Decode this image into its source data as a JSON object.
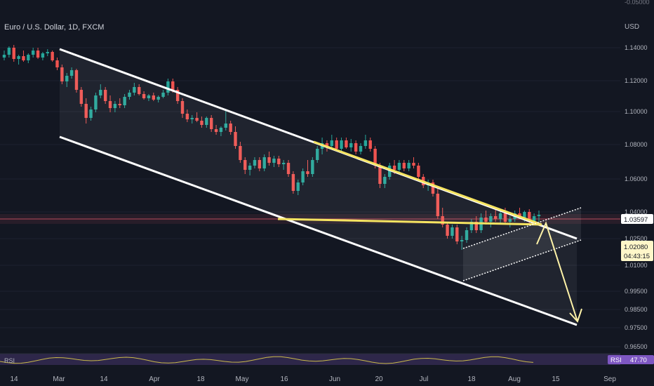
{
  "header": {
    "symbol": "Euro / U.S. Dollar, 1D, FXCM",
    "currency": "USD",
    "top_partial_tick": "-0.05000"
  },
  "colors": {
    "up": "#26a69a",
    "down": "#ef5350",
    "channel": "#ffffff",
    "wedge": "#f5e461",
    "arrow": "#fff3a8",
    "rsi_band": "#7e57c2",
    "rsi_line": "#c9b84a",
    "support": "#b84a5c"
  },
  "price_badges": {
    "level": "1.03597",
    "last": "1.02080",
    "countdown": "04:43:15"
  },
  "rsi": {
    "label": "RSI",
    "value": "47.70"
  },
  "chart_data": {
    "type": "candlestick",
    "y_ticks": [
      "1.14000",
      "1.12000",
      "1.10000",
      "1.08000",
      "1.06000",
      "1.04000",
      "1.02500",
      "1.01000",
      "0.99500",
      "0.98500",
      "0.97500",
      "0.96500"
    ],
    "x_ticks": [
      "14",
      "Mar",
      "14",
      "Apr",
      "18",
      "May",
      "16",
      "Jun",
      "20",
      "Jul",
      "18",
      "Aug",
      "15",
      "Sep"
    ],
    "candles": [
      [
        1.133,
        1.138,
        1.131,
        1.135
      ],
      [
        1.135,
        1.141,
        1.133,
        1.14
      ],
      [
        1.14,
        1.142,
        1.13,
        1.132
      ],
      [
        1.132,
        1.135,
        1.128,
        1.134
      ],
      [
        1.134,
        1.138,
        1.13,
        1.131
      ],
      [
        1.131,
        1.136,
        1.129,
        1.135
      ],
      [
        1.135,
        1.14,
        1.133,
        1.138
      ],
      [
        1.138,
        1.14,
        1.132,
        1.133
      ],
      [
        1.133,
        1.137,
        1.131,
        1.136
      ],
      [
        1.136,
        1.139,
        1.134,
        1.137
      ],
      [
        1.137,
        1.138,
        1.13,
        1.131
      ],
      [
        1.131,
        1.133,
        1.124,
        1.126
      ],
      [
        1.126,
        1.128,
        1.114,
        1.116
      ],
      [
        1.116,
        1.122,
        1.112,
        1.12
      ],
      [
        1.12,
        1.126,
        1.118,
        1.124
      ],
      [
        1.124,
        1.125,
        1.108,
        1.11
      ],
      [
        1.11,
        1.112,
        1.098,
        1.1
      ],
      [
        1.1,
        1.104,
        1.086,
        1.09
      ],
      [
        1.09,
        1.098,
        1.088,
        1.096
      ],
      [
        1.096,
        1.108,
        1.094,
        1.106
      ],
      [
        1.106,
        1.114,
        1.104,
        1.11
      ],
      [
        1.11,
        1.112,
        1.1,
        1.102
      ],
      [
        1.102,
        1.106,
        1.094,
        1.097
      ],
      [
        1.097,
        1.102,
        1.094,
        1.1
      ],
      [
        1.1,
        1.104,
        1.097,
        1.099
      ],
      [
        1.099,
        1.107,
        1.097,
        1.105
      ],
      [
        1.105,
        1.11,
        1.103,
        1.108
      ],
      [
        1.108,
        1.115,
        1.106,
        1.112
      ],
      [
        1.112,
        1.114,
        1.106,
        1.107
      ],
      [
        1.107,
        1.109,
        1.103,
        1.104
      ],
      [
        1.104,
        1.107,
        1.102,
        1.106
      ],
      [
        1.106,
        1.108,
        1.102,
        1.103
      ],
      [
        1.103,
        1.106,
        1.101,
        1.105
      ],
      [
        1.105,
        1.11,
        1.104,
        1.108
      ],
      [
        1.108,
        1.118,
        1.106,
        1.116
      ],
      [
        1.116,
        1.118,
        1.108,
        1.11
      ],
      [
        1.11,
        1.112,
        1.1,
        1.102
      ],
      [
        1.102,
        1.104,
        1.09,
        1.093
      ],
      [
        1.093,
        1.096,
        1.087,
        1.089
      ],
      [
        1.089,
        1.092,
        1.086,
        1.09
      ],
      [
        1.09,
        1.094,
        1.087,
        1.088
      ],
      [
        1.088,
        1.091,
        1.083,
        1.085
      ],
      [
        1.085,
        1.091,
        1.083,
        1.09
      ],
      [
        1.09,
        1.092,
        1.08,
        1.082
      ],
      [
        1.082,
        1.085,
        1.078,
        1.08
      ],
      [
        1.08,
        1.084,
        1.077,
        1.083
      ],
      [
        1.083,
        1.095,
        1.081,
        1.086
      ],
      [
        1.086,
        1.088,
        1.078,
        1.08
      ],
      [
        1.08,
        1.084,
        1.068,
        1.07
      ],
      [
        1.07,
        1.073,
        1.058,
        1.06
      ],
      [
        1.06,
        1.062,
        1.05,
        1.053
      ],
      [
        1.053,
        1.058,
        1.049,
        1.056
      ],
      [
        1.056,
        1.062,
        1.054,
        1.06
      ],
      [
        1.06,
        1.062,
        1.052,
        1.054
      ],
      [
        1.054,
        1.064,
        1.052,
        1.062
      ],
      [
        1.062,
        1.066,
        1.056,
        1.058
      ],
      [
        1.058,
        1.063,
        1.055,
        1.061
      ],
      [
        1.061,
        1.063,
        1.055,
        1.057
      ],
      [
        1.057,
        1.06,
        1.053,
        1.058
      ],
      [
        1.058,
        1.06,
        1.048,
        1.05
      ],
      [
        1.05,
        1.052,
        1.036,
        1.038
      ],
      [
        1.038,
        1.046,
        1.035,
        1.044
      ],
      [
        1.044,
        1.054,
        1.042,
        1.052
      ],
      [
        1.052,
        1.06,
        1.048,
        1.05
      ],
      [
        1.05,
        1.062,
        1.048,
        1.06
      ],
      [
        1.06,
        1.07,
        1.058,
        1.068
      ],
      [
        1.068,
        1.076,
        1.064,
        1.072
      ],
      [
        1.072,
        1.074,
        1.066,
        1.07
      ],
      [
        1.07,
        1.078,
        1.068,
        1.074
      ],
      [
        1.074,
        1.076,
        1.066,
        1.068
      ],
      [
        1.068,
        1.076,
        1.066,
        1.074
      ],
      [
        1.074,
        1.076,
        1.068,
        1.069
      ],
      [
        1.069,
        1.075,
        1.066,
        1.072
      ],
      [
        1.072,
        1.074,
        1.064,
        1.066
      ],
      [
        1.066,
        1.072,
        1.064,
        1.07
      ],
      [
        1.07,
        1.078,
        1.068,
        1.074
      ],
      [
        1.074,
        1.076,
        1.066,
        1.068
      ],
      [
        1.068,
        1.07,
        1.054,
        1.056
      ],
      [
        1.056,
        1.058,
        1.04,
        1.043
      ],
      [
        1.043,
        1.05,
        1.04,
        1.048
      ],
      [
        1.048,
        1.058,
        1.046,
        1.056
      ],
      [
        1.056,
        1.06,
        1.05,
        1.053
      ],
      [
        1.053,
        1.06,
        1.051,
        1.058
      ],
      [
        1.058,
        1.06,
        1.052,
        1.054
      ],
      [
        1.054,
        1.06,
        1.052,
        1.058
      ],
      [
        1.058,
        1.062,
        1.054,
        1.056
      ],
      [
        1.056,
        1.058,
        1.046,
        1.048
      ],
      [
        1.048,
        1.05,
        1.04,
        1.042
      ],
      [
        1.042,
        1.046,
        1.038,
        1.044
      ],
      [
        1.044,
        1.046,
        1.034,
        1.036
      ],
      [
        1.036,
        1.04,
        1.018,
        1.02
      ],
      [
        1.02,
        1.026,
        1.012,
        1.014
      ],
      [
        1.014,
        1.016,
        1.004,
        1.006
      ],
      [
        1.006,
        1.014,
        1.004,
        1.012
      ],
      [
        1.012,
        1.014,
        1.0,
        1.002
      ],
      [
        1.002,
        1.006,
        0.996,
        1.003
      ],
      [
        1.003,
        1.012,
        1.001,
        1.01
      ],
      [
        1.01,
        1.018,
        1.008,
        1.016
      ],
      [
        1.016,
        1.02,
        1.008,
        1.01
      ],
      [
        1.01,
        1.022,
        1.008,
        1.019
      ],
      [
        1.019,
        1.024,
        1.014,
        1.016
      ],
      [
        1.016,
        1.022,
        1.012,
        1.02
      ],
      [
        1.02,
        1.026,
        1.016,
        1.018
      ],
      [
        1.018,
        1.024,
        1.014,
        1.022
      ],
      [
        1.022,
        1.026,
        1.014,
        1.016
      ],
      [
        1.016,
        1.02,
        1.012,
        1.018
      ],
      [
        1.018,
        1.024,
        1.016,
        1.022
      ],
      [
        1.022,
        1.026,
        1.018,
        1.019
      ],
      [
        1.019,
        1.024,
        1.016,
        1.023
      ],
      [
        1.023,
        1.025,
        1.014,
        1.016
      ],
      [
        1.016,
        1.022,
        1.014,
        1.02
      ],
      [
        1.02,
        1.024,
        1.016,
        1.021
      ]
    ]
  }
}
